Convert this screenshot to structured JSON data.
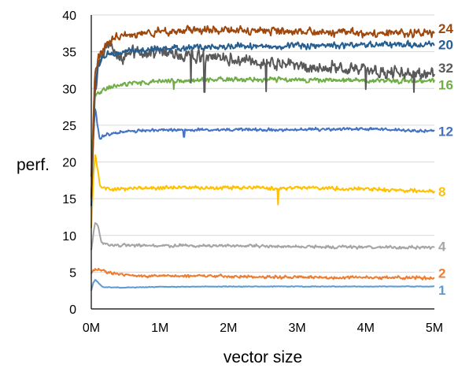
{
  "chart_data": {
    "type": "line",
    "title": "",
    "xlabel": "vector size",
    "ylabel": "perf.",
    "xlim": [
      0,
      5000000
    ],
    "ylim": [
      0,
      40
    ],
    "x_ticks": [
      {
        "value": 0,
        "label": "0M"
      },
      {
        "value": 1000000,
        "label": "1M"
      },
      {
        "value": 2000000,
        "label": "2M"
      },
      {
        "value": 3000000,
        "label": "3M"
      },
      {
        "value": 4000000,
        "label": "4M"
      },
      {
        "value": 5000000,
        "label": "5M"
      }
    ],
    "y_ticks": [
      0,
      5,
      10,
      15,
      20,
      25,
      30,
      35,
      40
    ],
    "grid": "horizontal",
    "legend": "right-edge labels",
    "series": [
      {
        "name": "1",
        "color": "#5b9bd5",
        "noise": 0.05,
        "points": [
          [
            0,
            2.5
          ],
          [
            30000,
            3.6
          ],
          [
            60000,
            4.0
          ],
          [
            100000,
            3.6
          ],
          [
            160000,
            3.0
          ],
          [
            400000,
            2.9
          ],
          [
            1000000,
            3.0
          ],
          [
            2000000,
            3.05
          ],
          [
            3000000,
            3.05
          ],
          [
            4000000,
            3.05
          ],
          [
            5000000,
            3.05
          ]
        ]
      },
      {
        "name": "2",
        "color": "#ed7d31",
        "noise": 0.22,
        "points": [
          [
            0,
            4.8
          ],
          [
            50000,
            5.4
          ],
          [
            150000,
            5.3
          ],
          [
            250000,
            5.0
          ],
          [
            400000,
            4.7
          ],
          [
            700000,
            4.4
          ],
          [
            1000000,
            4.5
          ],
          [
            2000000,
            4.4
          ],
          [
            3000000,
            4.3
          ],
          [
            4000000,
            4.25
          ],
          [
            5000000,
            4.2
          ]
        ]
      },
      {
        "name": "4",
        "color": "#a5a5a5",
        "noise": 0.22,
        "points": [
          [
            0,
            8.0
          ],
          [
            30000,
            10.2
          ],
          [
            60000,
            11.8
          ],
          [
            100000,
            11.2
          ],
          [
            150000,
            9.0
          ],
          [
            250000,
            8.7
          ],
          [
            1000000,
            8.6
          ],
          [
            2000000,
            8.6
          ],
          [
            3000000,
            8.5
          ],
          [
            4000000,
            8.4
          ],
          [
            5000000,
            8.4
          ]
        ]
      },
      {
        "name": "8",
        "color": "#ffc000",
        "noise": 0.25,
        "points": [
          [
            0,
            11.0
          ],
          [
            30000,
            18.0
          ],
          [
            60000,
            21.2
          ],
          [
            90000,
            19.0
          ],
          [
            130000,
            16.6
          ],
          [
            300000,
            16.3
          ],
          [
            1000000,
            16.5
          ],
          [
            2000000,
            16.5
          ],
          [
            2700000,
            16.4
          ],
          [
            3000000,
            16.5
          ],
          [
            4000000,
            16.3
          ],
          [
            5000000,
            16.0
          ]
        ]
      },
      {
        "name": "12",
        "color": "#4472c4",
        "noise": 0.22,
        "points": [
          [
            0,
            15.0
          ],
          [
            30000,
            24.0
          ],
          [
            60000,
            27.5
          ],
          [
            90000,
            25.0
          ],
          [
            120000,
            23.2
          ],
          [
            250000,
            23.8
          ],
          [
            600000,
            24.2
          ],
          [
            1000000,
            24.3
          ],
          [
            2000000,
            24.4
          ],
          [
            3000000,
            24.4
          ],
          [
            4000000,
            24.5
          ],
          [
            5000000,
            24.2
          ]
        ]
      },
      {
        "name": "16",
        "color": "#70ad47",
        "noise": 0.35,
        "points": [
          [
            0,
            18.0
          ],
          [
            40000,
            28.5
          ],
          [
            80000,
            29.2
          ],
          [
            200000,
            29.8
          ],
          [
            400000,
            30.5
          ],
          [
            700000,
            30.8
          ],
          [
            1000000,
            31.0
          ],
          [
            2000000,
            31.2
          ],
          [
            3000000,
            31.2
          ],
          [
            4000000,
            31.1
          ],
          [
            5000000,
            31.0
          ]
        ]
      },
      {
        "name": "32",
        "color": "#595959",
        "noise": 0.9,
        "points": [
          [
            0,
            15.0
          ],
          [
            50000,
            28.0
          ],
          [
            100000,
            33.0
          ],
          [
            200000,
            35.0
          ],
          [
            250000,
            36.0
          ],
          [
            400000,
            34.0
          ],
          [
            600000,
            35.0
          ],
          [
            1000000,
            35.0
          ],
          [
            1500000,
            34.5
          ],
          [
            2000000,
            34.0
          ],
          [
            2500000,
            33.5
          ],
          [
            3000000,
            33.0
          ],
          [
            3500000,
            32.8
          ],
          [
            4000000,
            32.5
          ],
          [
            4500000,
            32.2
          ],
          [
            5000000,
            32.0
          ]
        ]
      },
      {
        "name": "20",
        "color": "#255e91",
        "noise": 0.45,
        "points": [
          [
            0,
            14.0
          ],
          [
            50000,
            30.0
          ],
          [
            100000,
            33.0
          ],
          [
            200000,
            34.5
          ],
          [
            500000,
            35.0
          ],
          [
            1000000,
            35.5
          ],
          [
            2000000,
            35.7
          ],
          [
            3000000,
            35.8
          ],
          [
            4000000,
            35.9
          ],
          [
            5000000,
            36.0
          ]
        ]
      },
      {
        "name": "24",
        "color": "#9e480e",
        "noise": 0.55,
        "points": [
          [
            0,
            15.0
          ],
          [
            50000,
            32.0
          ],
          [
            100000,
            34.0
          ],
          [
            200000,
            36.0
          ],
          [
            400000,
            37.2
          ],
          [
            800000,
            37.6
          ],
          [
            1000000,
            37.8
          ],
          [
            2000000,
            38.0
          ],
          [
            3000000,
            37.8
          ],
          [
            4000000,
            37.5
          ],
          [
            5000000,
            37.6
          ]
        ]
      }
    ],
    "spikes": [
      {
        "series": "8",
        "x": 2720000,
        "y": 14.2
      },
      {
        "series": "32",
        "x": 1450000,
        "y": 30.8
      },
      {
        "series": "32",
        "x": 1650000,
        "y": 29.5
      },
      {
        "series": "32",
        "x": 2550000,
        "y": 29.6
      },
      {
        "series": "32",
        "x": 4000000,
        "y": 29.9
      },
      {
        "series": "32",
        "x": 4700000,
        "y": 29.5
      },
      {
        "series": "12",
        "x": 1350000,
        "y": 23.4
      },
      {
        "series": "16",
        "x": 1200000,
        "y": 29.9
      }
    ],
    "end_labels": [
      {
        "series": "24",
        "text": "24",
        "color": "#9e480e",
        "y": 38.2
      },
      {
        "series": "20",
        "text": "20",
        "color": "#255e91",
        "y": 36.0
      },
      {
        "series": "32",
        "text": "32",
        "color": "#595959",
        "y": 32.8
      },
      {
        "series": "16",
        "text": "16",
        "color": "#70ad47",
        "y": 30.5
      },
      {
        "series": "12",
        "text": "12",
        "color": "#4472c4",
        "y": 24.2
      },
      {
        "series": "8",
        "text": "8",
        "color": "#ffc000",
        "y": 16.0
      },
      {
        "series": "4",
        "text": "4",
        "color": "#a5a5a5",
        "y": 8.5
      },
      {
        "series": "2",
        "text": "2",
        "color": "#ed7d31",
        "y": 4.9
      },
      {
        "series": "1",
        "text": "1",
        "color": "#5b9bd5",
        "y": 2.6
      }
    ]
  }
}
